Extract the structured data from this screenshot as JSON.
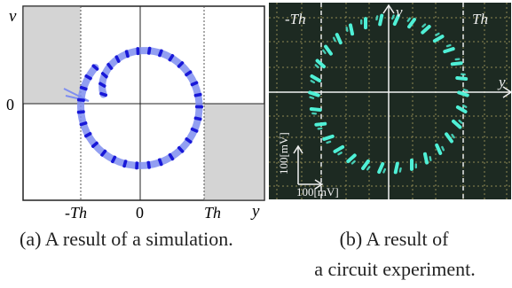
{
  "panel_a": {
    "label_v": "v",
    "label_y": "y",
    "tick_zero_left": "0",
    "tick_neg_th": "-Th",
    "tick_zero_bottom": "0",
    "tick_th": "Th",
    "caption": "(a) A result of a simulation.",
    "colors": {
      "shade": "#d4d4d4",
      "band": "#7f8ef0",
      "dots": "#1818d8"
    }
  },
  "panel_b": {
    "label_neg_th": "-Th",
    "label_th": "Th",
    "label_v": "v",
    "label_y": "y",
    "scale_x": "100[mV]",
    "scale_y": "100[mV]",
    "caption_line1": "(b) A result of",
    "caption_line2": "a circuit experiment.",
    "colors": {
      "background": "#1d2a22",
      "grid": "#b7a862",
      "trace": "#4ff0d6"
    }
  },
  "chart_data": [
    {
      "type": "scatter",
      "title": "",
      "xlabel": "y",
      "ylabel": "v",
      "x_ticks": [
        "-Th",
        "0",
        "Th"
      ],
      "y_ticks": [
        "0"
      ],
      "trajectory_shape": "spiral growing to a circle centred at y = 0, v > 0",
      "shaded_regions": [
        "y < -Th, v > 0",
        "y > Th, v < 0"
      ]
    },
    {
      "type": "scatter",
      "title": "",
      "xlabel": "y",
      "ylabel": "v",
      "x_markers": [
        "-Th",
        "Th"
      ],
      "scale_x": "100[mV]",
      "scale_y": "100[mV]",
      "trajectory_shape": "ring of dashes centred on the origin"
    }
  ]
}
